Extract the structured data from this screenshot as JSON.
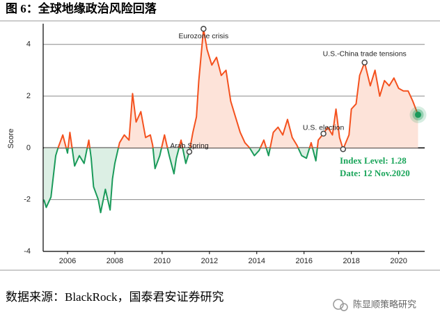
{
  "header": {
    "title": "图 6：全球地缘政治风险回落"
  },
  "chart_data": {
    "type": "line",
    "ylabel": "Score",
    "xlim": [
      2004.97,
      2021.1
    ],
    "ylim": [
      -4,
      4.8
    ],
    "xticks": [
      2006,
      2008,
      2010,
      2012,
      2014,
      2016,
      2018,
      2020
    ],
    "yticks": [
      -4,
      -2,
      0,
      2,
      4
    ],
    "grid": true,
    "x": [
      2005.0,
      2005.1,
      2005.3,
      2005.5,
      2005.6,
      2005.8,
      2006.0,
      2006.1,
      2006.3,
      2006.5,
      2006.7,
      2006.9,
      2007.0,
      2007.1,
      2007.3,
      2007.4,
      2007.6,
      2007.8,
      2007.9,
      2008.0,
      2008.2,
      2008.4,
      2008.6,
      2008.75,
      2008.9,
      2009.1,
      2009.3,
      2009.5,
      2009.6,
      2009.7,
      2009.9,
      2010.1,
      2010.3,
      2010.5,
      2010.6,
      2010.8,
      2011.0,
      2011.15,
      2011.3,
      2011.45,
      2011.55,
      2011.65,
      2011.75,
      2011.9,
      2012.1,
      2012.3,
      2012.5,
      2012.7,
      2012.9,
      2013.1,
      2013.3,
      2013.5,
      2013.7,
      2013.9,
      2014.1,
      2014.3,
      2014.5,
      2014.7,
      2014.9,
      2015.1,
      2015.3,
      2015.5,
      2015.7,
      2015.9,
      2016.1,
      2016.3,
      2016.5,
      2016.6,
      2016.82,
      2017.0,
      2017.2,
      2017.35,
      2017.5,
      2017.65,
      2017.9,
      2018.0,
      2018.2,
      2018.35,
      2018.56,
      2018.8,
      2019.0,
      2019.2,
      2019.4,
      2019.6,
      2019.8,
      2020.0,
      2020.2,
      2020.4,
      2020.6,
      2020.82
    ],
    "series": [
      {
        "color": "#f4511e",
        "negative_color": "#1a9a5a",
        "fill": "#fde3d9",
        "negative_fill": "#dcefe4",
        "values": [
          -2.0,
          -2.3,
          -1.9,
          -0.3,
          0.0,
          0.5,
          -0.2,
          0.6,
          -0.7,
          -0.3,
          -0.6,
          0.3,
          -0.4,
          -1.5,
          -2.0,
          -2.5,
          -1.6,
          -2.4,
          -1.2,
          -0.6,
          0.2,
          0.5,
          0.3,
          2.1,
          1.0,
          1.4,
          0.4,
          0.5,
          0.1,
          -0.8,
          -0.3,
          0.5,
          -0.3,
          -1.0,
          -0.4,
          0.3,
          -0.6,
          -0.15,
          0.6,
          1.2,
          2.6,
          3.6,
          4.6,
          3.8,
          3.2,
          3.5,
          2.8,
          3.0,
          1.8,
          1.2,
          0.6,
          0.2,
          0.0,
          -0.3,
          -0.1,
          0.3,
          -0.3,
          0.6,
          0.8,
          0.5,
          1.1,
          0.4,
          0.1,
          -0.3,
          -0.4,
          0.2,
          -0.5,
          0.3,
          0.55,
          0.8,
          0.5,
          1.5,
          0.4,
          -0.05,
          0.5,
          1.5,
          1.7,
          2.8,
          3.3,
          2.4,
          3.0,
          2.0,
          2.6,
          2.4,
          2.7,
          2.3,
          2.2,
          2.2,
          1.8,
          1.28
        ]
      }
    ],
    "annotations": [
      {
        "text": "Eurozone crisis",
        "x": 2011.75,
        "y": 4.6
      },
      {
        "text": "Arab Spring",
        "x": 2011.15,
        "y": -0.15
      },
      {
        "text": "U.S. election",
        "x": 2016.82,
        "y": 0.55
      },
      {
        "text": "U.S.-China trade tensions",
        "x": 2018.56,
        "y": 3.3
      }
    ],
    "highlight_points": [
      {
        "x": 2017.65,
        "y": -0.05
      }
    ],
    "end_label": {
      "lines": [
        "Index Level: 1.28",
        "Date: 12 Nov.2020"
      ],
      "color": "#1aa55a"
    }
  },
  "footer": {
    "source": "数据来源：BlackRock，国泰君安证券研究",
    "watermark": "陈显顺策略研究"
  }
}
